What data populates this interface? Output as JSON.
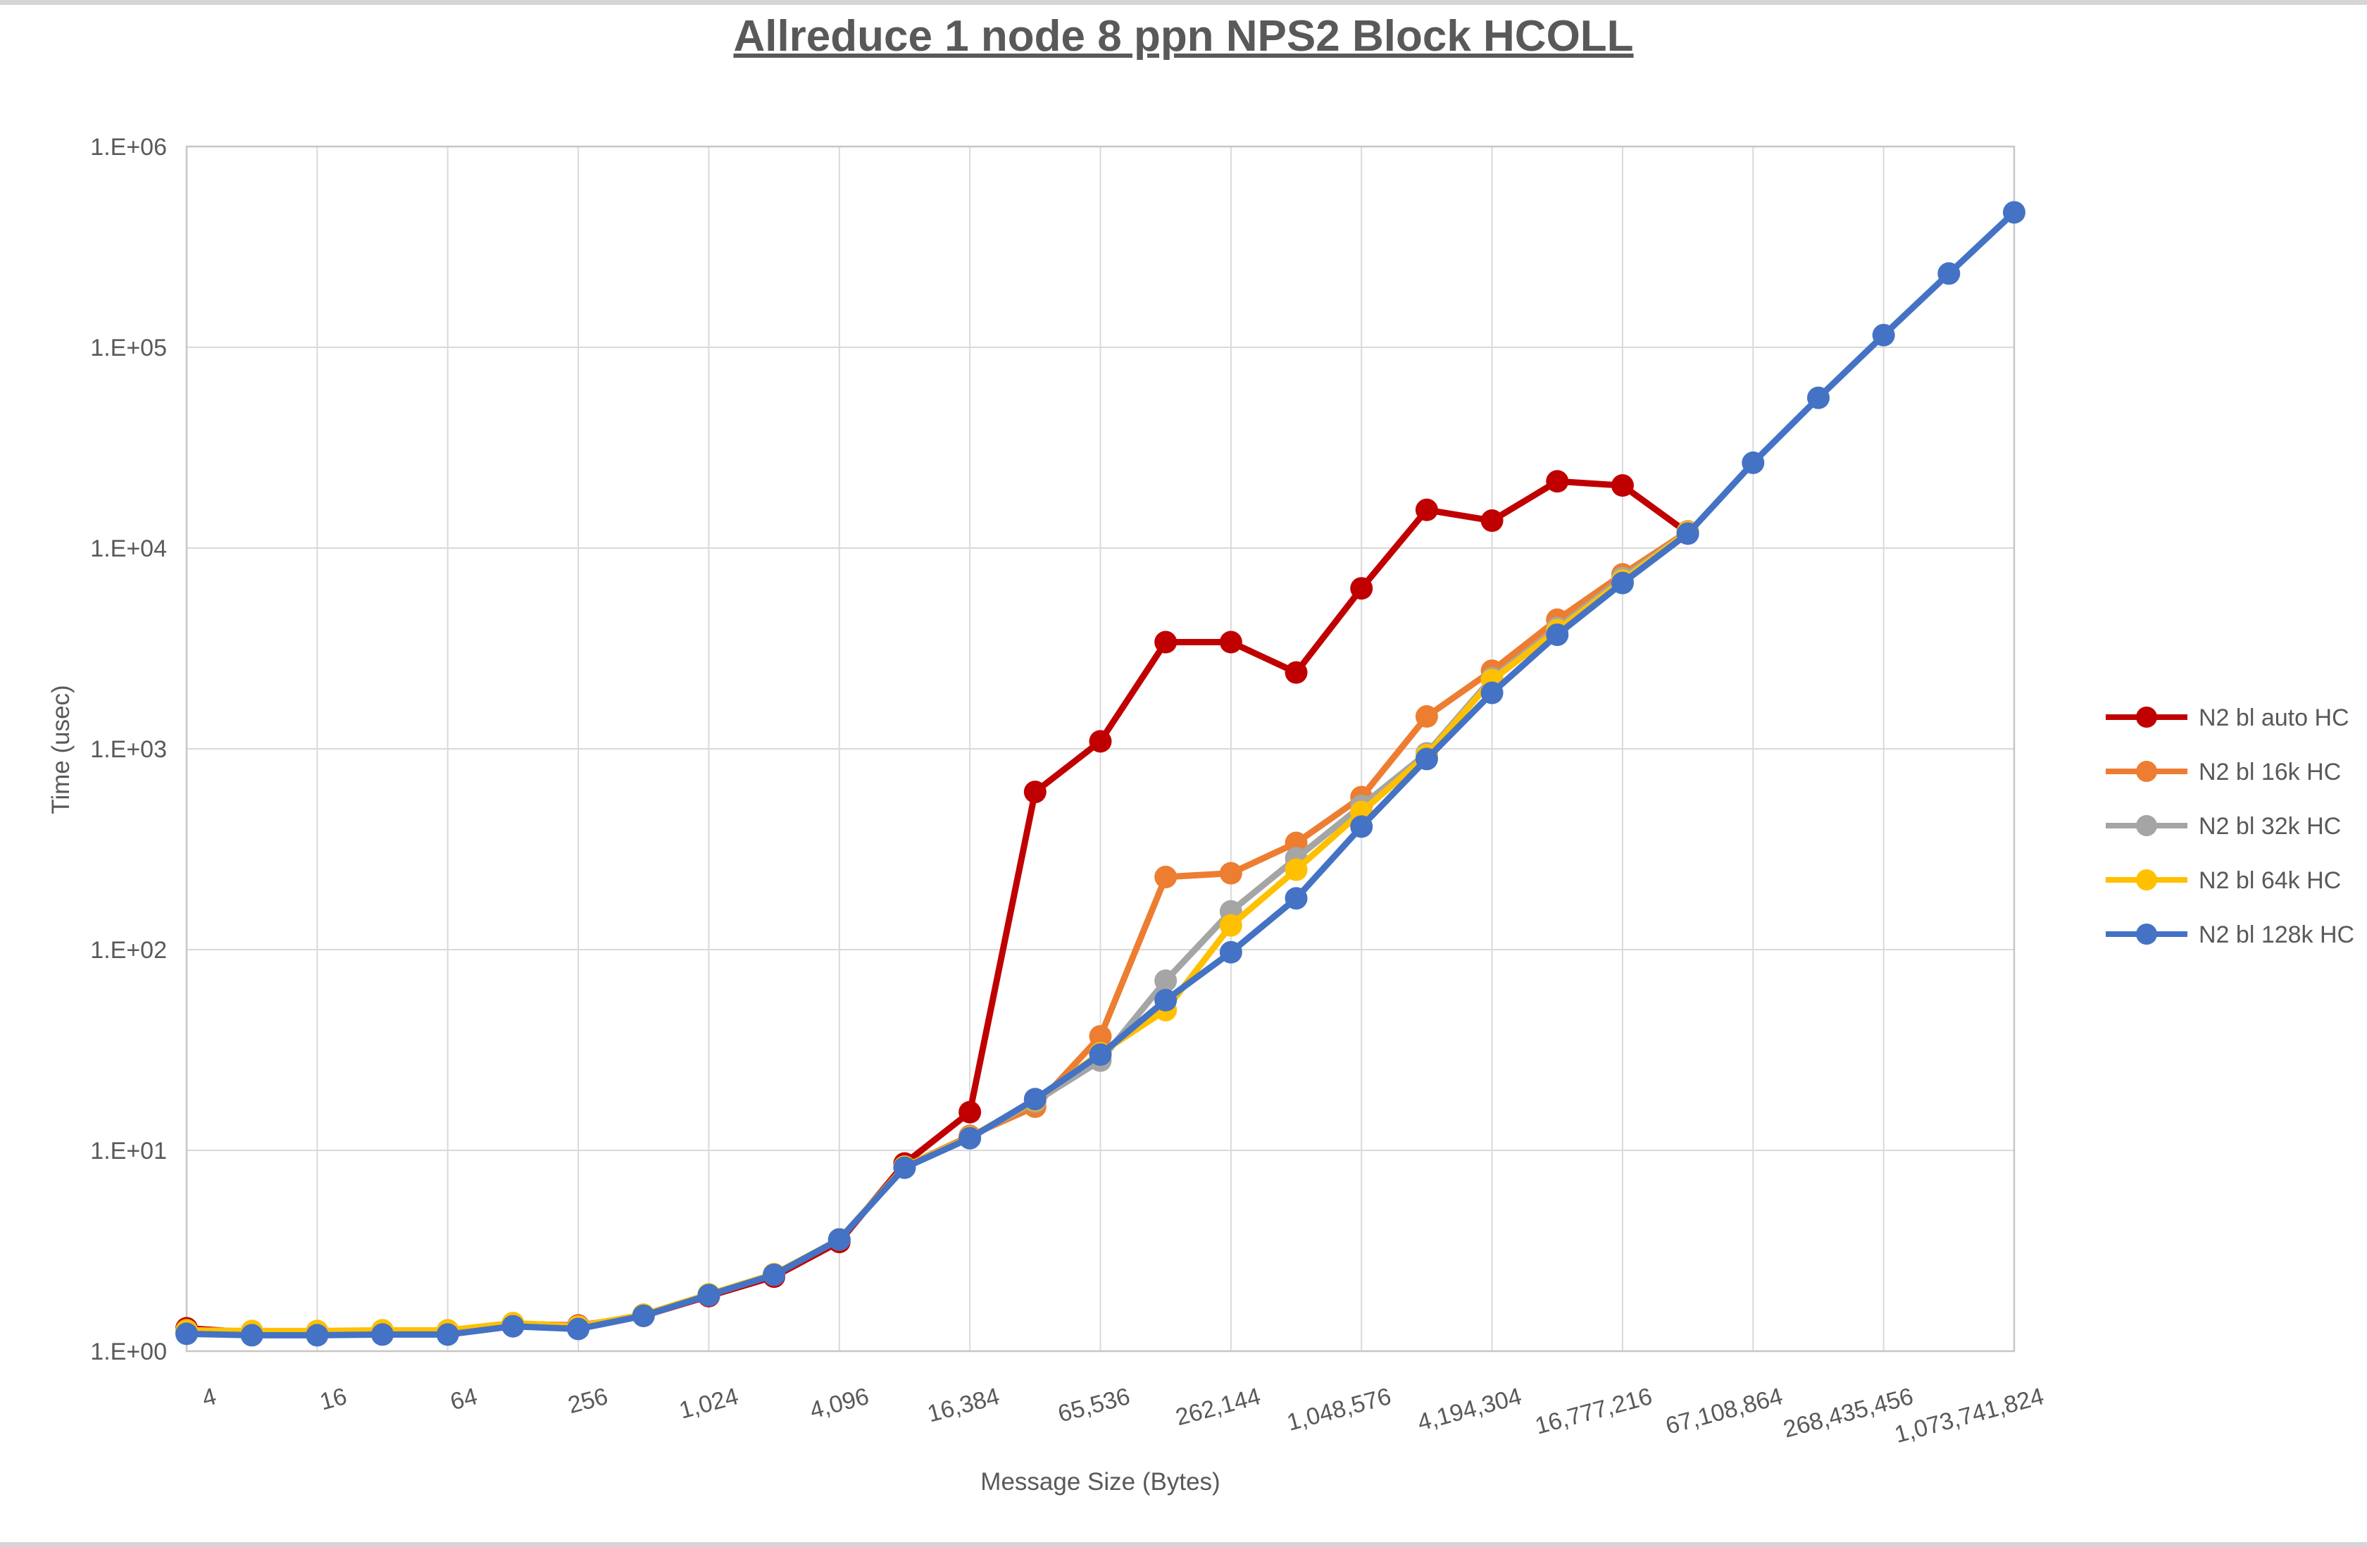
{
  "title": "Allreduce 1 node 8 ppn NPS2 Block HCOLL",
  "colors": {
    "text": "#595959",
    "gridline": "#d9d9d9",
    "plot_border": "#c6c6c6"
  },
  "chart_data": {
    "type": "line",
    "title": "Allreduce 1 node 8 ppn NPS2 Block HCOLL",
    "xlabel": "Message Size (Bytes)",
    "ylabel": "Time (usec)",
    "x_scale": "log2",
    "y_scale": "log10",
    "ylim": [
      1,
      1000000
    ],
    "grid": true,
    "legend_position": "right",
    "y_tick_labels": [
      "1.E+00",
      "1.E+01",
      "1.E+02",
      "1.E+03",
      "1.E+04",
      "1.E+05",
      "1.E+06"
    ],
    "x_tick_labels": [
      "4",
      "16",
      "64",
      "256",
      "1,024",
      "4,096",
      "16,384",
      "65,536",
      "262,144",
      "1,048,576",
      "4,194,304",
      "16,777,216",
      "67,108,864",
      "268,435,456",
      "1,073,741,824"
    ],
    "x": [
      4,
      8,
      16,
      32,
      64,
      128,
      256,
      512,
      1024,
      2048,
      4096,
      8192,
      16384,
      32768,
      65536,
      131072,
      262144,
      524288,
      1048576,
      2097152,
      4194304,
      8388608,
      16777216,
      33554432,
      67108864,
      134217728,
      268435456,
      536870912,
      1073741824
    ],
    "series": [
      {
        "name": "N2 bl auto HC",
        "color": "#c00000",
        "values": [
          1.3,
          1.24,
          1.24,
          1.25,
          1.25,
          1.37,
          1.34,
          1.5,
          1.88,
          2.35,
          3.5,
          8.6,
          15.5,
          610,
          1090,
          3400,
          3400,
          2400,
          6300,
          15500,
          13700,
          21500,
          20500,
          11900
        ]
      },
      {
        "name": "N2 bl 16k HC",
        "color": "#ed7d31",
        "values": [
          1.25,
          1.23,
          1.23,
          1.24,
          1.24,
          1.36,
          1.31,
          1.5,
          1.9,
          2.4,
          3.6,
          8.3,
          11.8,
          16.5,
          37,
          230,
          240,
          340,
          575,
          1450,
          2450,
          4400,
          7400,
          12100
        ]
      },
      {
        "name": "N2 bl 32k HC",
        "color": "#a5a5a5",
        "values": [
          1.24,
          1.22,
          1.22,
          1.23,
          1.23,
          1.35,
          1.31,
          1.51,
          1.91,
          2.41,
          3.6,
          8.25,
          11.6,
          17.5,
          28,
          70,
          155,
          285,
          520,
          950,
          2250,
          4000,
          7100,
          12000
        ]
      },
      {
        "name": "N2 bl 64k HC",
        "color": "#ffc000",
        "values": [
          1.27,
          1.26,
          1.26,
          1.27,
          1.27,
          1.38,
          1.33,
          1.52,
          1.92,
          2.42,
          3.6,
          8.3,
          11.6,
          17.8,
          30.5,
          50,
          132,
          250,
          485,
          930,
          2200,
          3900,
          6900,
          12000
        ]
      },
      {
        "name": "N2 bl 128k HC",
        "color": "#4472c4",
        "values": [
          1.22,
          1.2,
          1.2,
          1.21,
          1.21,
          1.33,
          1.29,
          1.5,
          1.9,
          2.4,
          3.6,
          8.2,
          11.5,
          18,
          30,
          56,
          97,
          180,
          410,
          890,
          1900,
          3700,
          6700,
          11800,
          26600,
          56000,
          115000,
          233000,
          470000
        ]
      }
    ]
  }
}
